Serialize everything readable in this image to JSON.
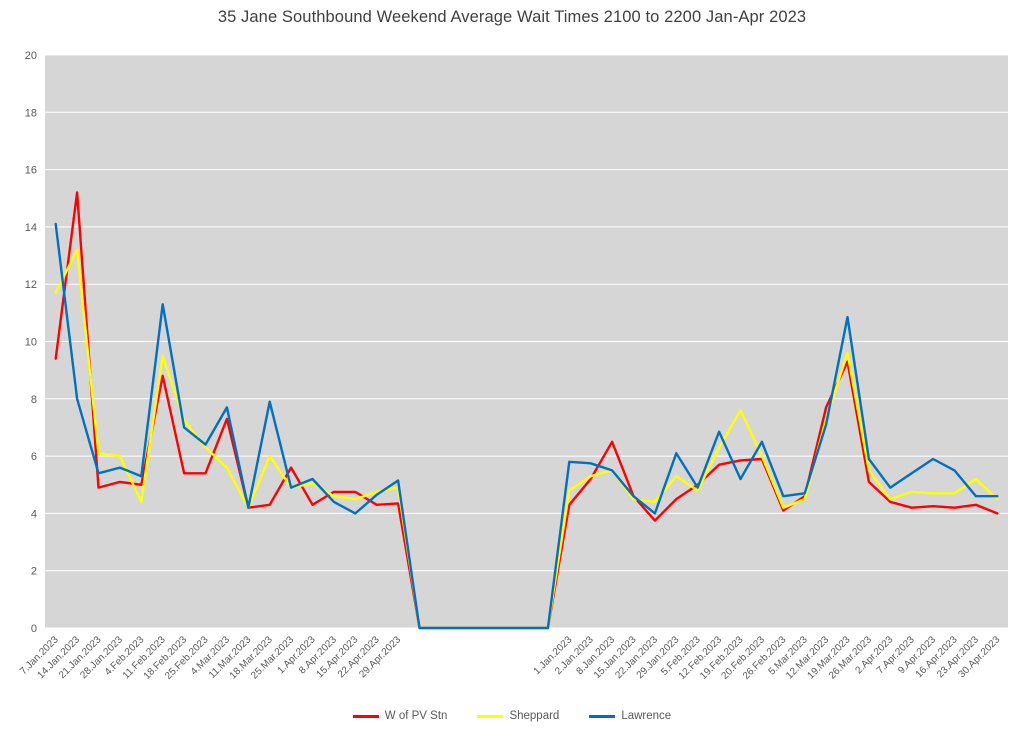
{
  "chart_data": {
    "type": "line",
    "title": "35 Jane Southbound Weekend Average Wait Times 2100 to 2200 Jan-Apr 2023",
    "xlabel": "",
    "ylabel": "",
    "ylim": [
      0,
      20
    ],
    "ytick_step": 2,
    "grid": true,
    "legend_position": "bottom",
    "plot_bg": "#d6d6d6",
    "gridline_color": "#ffffff",
    "axis_text_color": "#595959",
    "title_color": "#404040",
    "categories": [
      "7.Jan.2023",
      "14.Jan.2023",
      "21.Jan.2023",
      "28.Jan.2023",
      "4.Feb.2023",
      "11.Feb.2023",
      "18.Feb.2023",
      "25.Feb.2023",
      "4.Mar.2023",
      "11.Mar.2023",
      "18.Mar.2023",
      "25.Mar.2023",
      "1.Apr.2023",
      "8.Apr.2023",
      "15.Apr.2023",
      "22.Apr.2023",
      "29.Apr.2023",
      "",
      "",
      "",
      "",
      "",
      "",
      "",
      "1.Jan.2023",
      "2.Jan.2023",
      "8.Jan.2023",
      "15.Jan.2023",
      "22.Jan.2023",
      "29.Jan.2023",
      "5.Feb.2023",
      "12.Feb.2023",
      "19.Feb.2023",
      "20.Feb.2023",
      "26.Feb.2023",
      "5.Mar.2023",
      "12.Mar.2023",
      "19.Mar.2023",
      "26.Mar.2023",
      "2.Apr.2023",
      "7.Apr.2023",
      "9.Apr.2023",
      "16.Apr.2023",
      "23.Apr.2023",
      "30.Apr.2023"
    ],
    "series": [
      {
        "name": "W of PV Stn",
        "color": "#ff0000",
        "values": [
          9.4,
          15.2,
          4.9,
          5.1,
          5.0,
          8.8,
          5.4,
          5.4,
          7.3,
          4.2,
          4.3,
          5.6,
          4.3,
          4.75,
          4.75,
          4.3,
          4.35,
          0,
          0,
          0,
          0,
          0,
          0,
          0,
          4.3,
          5.2,
          6.5,
          4.6,
          3.75,
          4.5,
          5.0,
          5.7,
          5.85,
          5.9,
          4.1,
          4.6,
          7.7,
          9.3,
          5.1,
          4.4,
          4.2,
          4.25,
          4.2,
          4.3,
          4.0
        ]
      },
      {
        "name": "Sheppard",
        "color": "#ffff00",
        "values": [
          11.7,
          13.2,
          6.1,
          6.0,
          4.4,
          9.5,
          7.25,
          6.3,
          5.6,
          4.2,
          6.0,
          4.9,
          5.05,
          4.6,
          4.5,
          4.75,
          4.9,
          0,
          0,
          0,
          0,
          0,
          0,
          0,
          4.8,
          5.3,
          5.5,
          4.5,
          4.4,
          5.3,
          4.8,
          6.3,
          7.6,
          6.0,
          4.2,
          4.5,
          7.3,
          9.6,
          5.5,
          4.5,
          4.75,
          4.7,
          4.7,
          5.2,
          4.5
        ]
      },
      {
        "name": "Lawrence",
        "color": "#0070c0",
        "values": [
          14.1,
          8.0,
          5.4,
          5.6,
          5.3,
          11.3,
          7.0,
          6.4,
          7.7,
          4.2,
          7.9,
          4.9,
          5.2,
          4.4,
          4.0,
          4.65,
          5.15,
          0,
          0,
          0,
          0,
          0,
          0,
          0,
          5.8,
          5.75,
          5.5,
          4.6,
          4.0,
          6.1,
          4.9,
          6.85,
          5.2,
          6.5,
          4.6,
          4.7,
          7.1,
          10.85,
          5.9,
          4.9,
          5.4,
          5.9,
          5.5,
          4.6,
          4.6
        ]
      }
    ]
  }
}
